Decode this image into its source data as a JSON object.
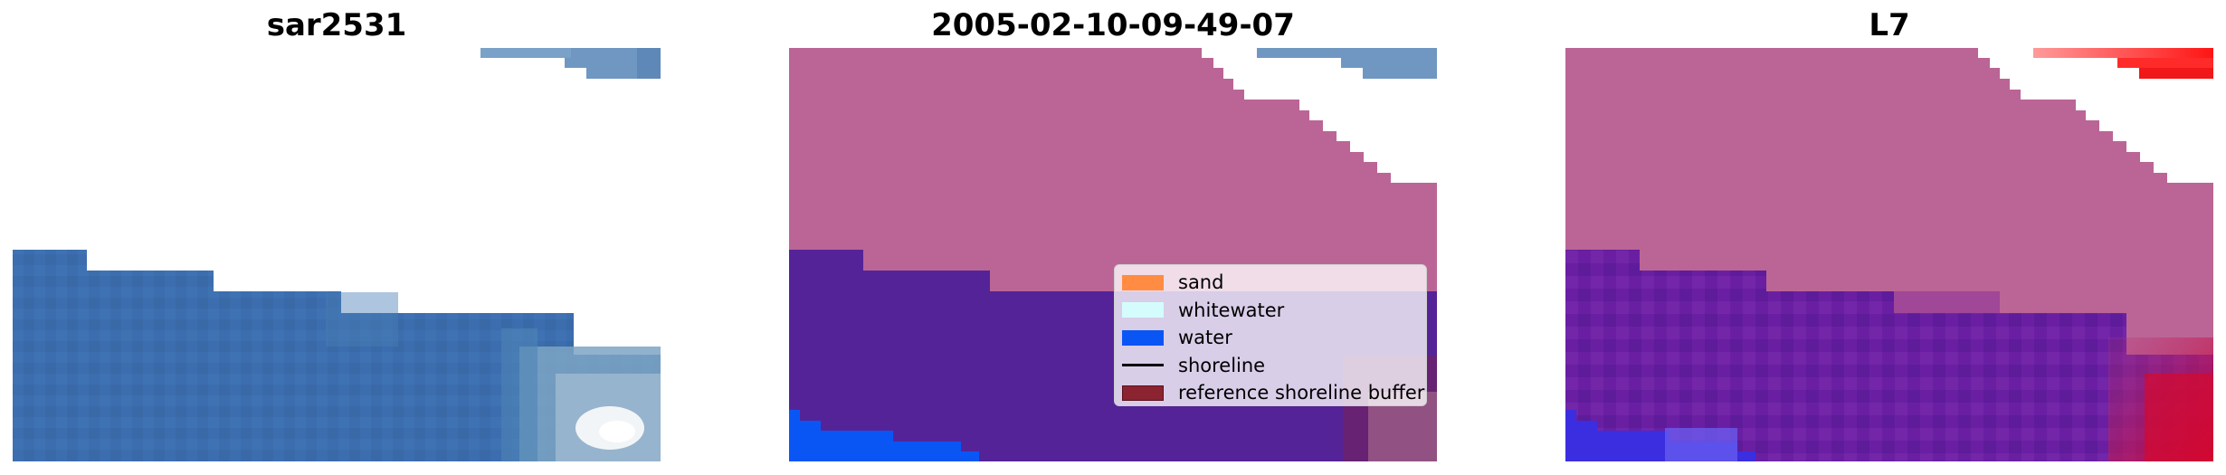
{
  "panels": [
    {
      "title": "sar2531",
      "kind": "rgb"
    },
    {
      "title": "2005-02-10-09-49-07",
      "kind": "classified"
    },
    {
      "title": "L7",
      "kind": "probability"
    }
  ],
  "legend": {
    "items": [
      {
        "label": "sand",
        "color": "#ff8c42",
        "style": "patch"
      },
      {
        "label": "whitewater",
        "color": "#d4fcfc",
        "style": "patch"
      },
      {
        "label": "water",
        "color": "#0a56f5",
        "style": "patch"
      },
      {
        "label": "shoreline",
        "color": "#000000",
        "style": "line"
      },
      {
        "label": "reference shoreline buffer",
        "color": "#8c2330",
        "style": "patch"
      }
    ]
  },
  "colors": {
    "land_mask": "#bb6596",
    "water_class": "#542398",
    "water_blue": "#0a56f5",
    "sea_rgb": "#3b6daf",
    "reference_buffer": "#8c2330"
  }
}
